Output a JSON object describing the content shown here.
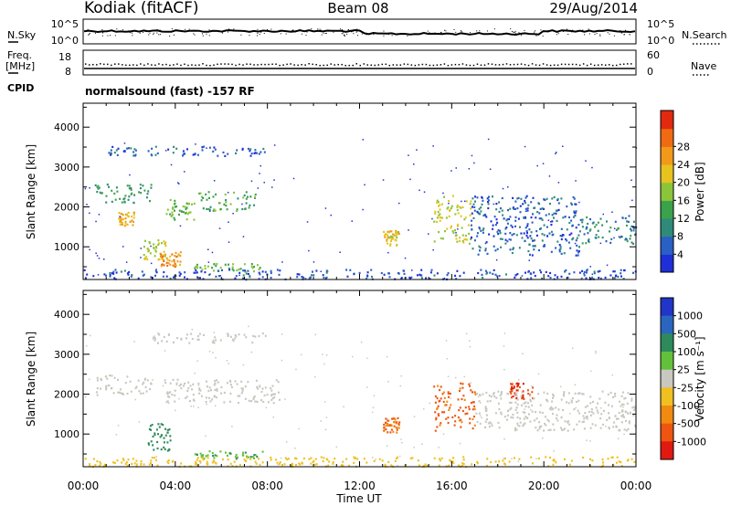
{
  "header": {
    "station": "Kodiak (fitACF)",
    "beam": "Beam 08",
    "date": "29/Aug/2014"
  },
  "strip_nsky": {
    "left_label": "N.Sky",
    "left_ticks": [
      "10^5",
      "10^0"
    ],
    "right_ticks": [
      "10^5",
      "10^0"
    ],
    "right_label": "N.Search"
  },
  "strip_freq": {
    "left_label_1": "Freq.",
    "left_label_2": "[MHz]",
    "left_ticks": [
      "18",
      "8"
    ],
    "right_ticks": [
      "60",
      "0"
    ],
    "right_label": "Nave",
    "cpid_label": "CPID"
  },
  "cpid_text": "normalsound (fast) -157 RF",
  "chart_data": [
    {
      "type": "heatmap",
      "name": "Power",
      "ylabel": "Slant Range [km]",
      "xlabel": "Time UT",
      "ylim": [
        180,
        4600
      ],
      "yticks": [
        "1000",
        "2000",
        "3000",
        "4000"
      ],
      "xticks": [
        "00:00",
        "04:00",
        "08:00",
        "12:00",
        "16:00",
        "20:00",
        "00:00"
      ],
      "colorbar_label": "Power [dB]",
      "colorbar_ticks": [
        "4",
        "8",
        "12",
        "16",
        "20",
        "24",
        "28"
      ],
      "colorscale": [
        "#1f2fd8",
        "#2a5fc4",
        "#2f8a7a",
        "#3aa24a",
        "#8cc43a",
        "#e6c31f",
        "#f2991a",
        "#f06a12",
        "#e12a10"
      ],
      "regions": [
        {
          "t": [
            1.0,
            8.0
          ],
          "r": [
            3300,
            3550
          ],
          "v": 6
        },
        {
          "t": [
            0.5,
            3.0
          ],
          "r": [
            2100,
            2600
          ],
          "v": 12
        },
        {
          "t": [
            1.5,
            2.2
          ],
          "r": [
            1550,
            1900
          ],
          "v": 24
        },
        {
          "t": [
            2.6,
            3.6
          ],
          "r": [
            700,
            1200
          ],
          "v": 20
        },
        {
          "t": [
            3.3,
            4.2
          ],
          "r": [
            500,
            900
          ],
          "v": 26
        },
        {
          "t": [
            3.5,
            4.8
          ],
          "r": [
            1700,
            2200
          ],
          "v": 16
        },
        {
          "t": [
            5.0,
            7.5
          ],
          "r": [
            1900,
            2400
          ],
          "v": 14
        },
        {
          "t": [
            4.8,
            7.8
          ],
          "r": [
            400,
            600
          ],
          "v": 16
        },
        {
          "t": [
            13.0,
            13.7
          ],
          "r": [
            1050,
            1450
          ],
          "v": 22
        },
        {
          "t": [
            15.2,
            16.8
          ],
          "r": [
            1100,
            2300
          ],
          "v": 20
        },
        {
          "t": [
            16.8,
            21.5
          ],
          "r": [
            800,
            2300
          ],
          "v": 6
        },
        {
          "t": [
            21.5,
            24.0
          ],
          "r": [
            1100,
            1800
          ],
          "v": 10
        },
        {
          "t": [
            0.0,
            24.0
          ],
          "r": [
            200,
            450
          ],
          "v": 5
        }
      ]
    },
    {
      "type": "heatmap",
      "name": "Velocity",
      "ylabel": "Slant Range [km]",
      "xlabel": "Time UT",
      "ylim": [
        180,
        4600
      ],
      "yticks": [
        "1000",
        "2000",
        "3000",
        "4000"
      ],
      "xticks": [
        "00:00",
        "04:00",
        "08:00",
        "12:00",
        "16:00",
        "20:00",
        "00:00"
      ],
      "colorbar_label": "Velocity [m s⁻¹]",
      "colorbar_ticks": [
        "1000",
        "500",
        "100",
        "25",
        "-25",
        "-100",
        "-500",
        "-1000"
      ],
      "colorscale": [
        "#2135c7",
        "#2a66c0",
        "#2e8a5c",
        "#63c03a",
        "#c8c8c0",
        "#f0c020",
        "#f08a10",
        "#ee5510",
        "#e01a10"
      ],
      "regions": [
        {
          "t": [
            3.0,
            8.0
          ],
          "r": [
            3300,
            3550
          ],
          "v": 0
        },
        {
          "t": [
            0.5,
            3.0
          ],
          "r": [
            2000,
            2500
          ],
          "v": 10
        },
        {
          "t": [
            3.5,
            8.5
          ],
          "r": [
            1800,
            2400
          ],
          "v": 5
        },
        {
          "t": [
            2.8,
            3.8
          ],
          "r": [
            600,
            1300
          ],
          "v": 300
        },
        {
          "t": [
            4.8,
            7.8
          ],
          "r": [
            400,
            600
          ],
          "v": 80
        },
        {
          "t": [
            13.0,
            13.7
          ],
          "r": [
            1050,
            1450
          ],
          "v": -500
        },
        {
          "t": [
            15.2,
            17.0
          ],
          "r": [
            1100,
            2300
          ],
          "v": -600
        },
        {
          "t": [
            18.5,
            19.5
          ],
          "r": [
            1900,
            2300
          ],
          "v": -900
        },
        {
          "t": [
            17.0,
            24.0
          ],
          "r": [
            1100,
            2100
          ],
          "v": 0
        },
        {
          "t": [
            0.0,
            24.0
          ],
          "r": [
            200,
            450
          ],
          "v": -50
        }
      ]
    }
  ]
}
